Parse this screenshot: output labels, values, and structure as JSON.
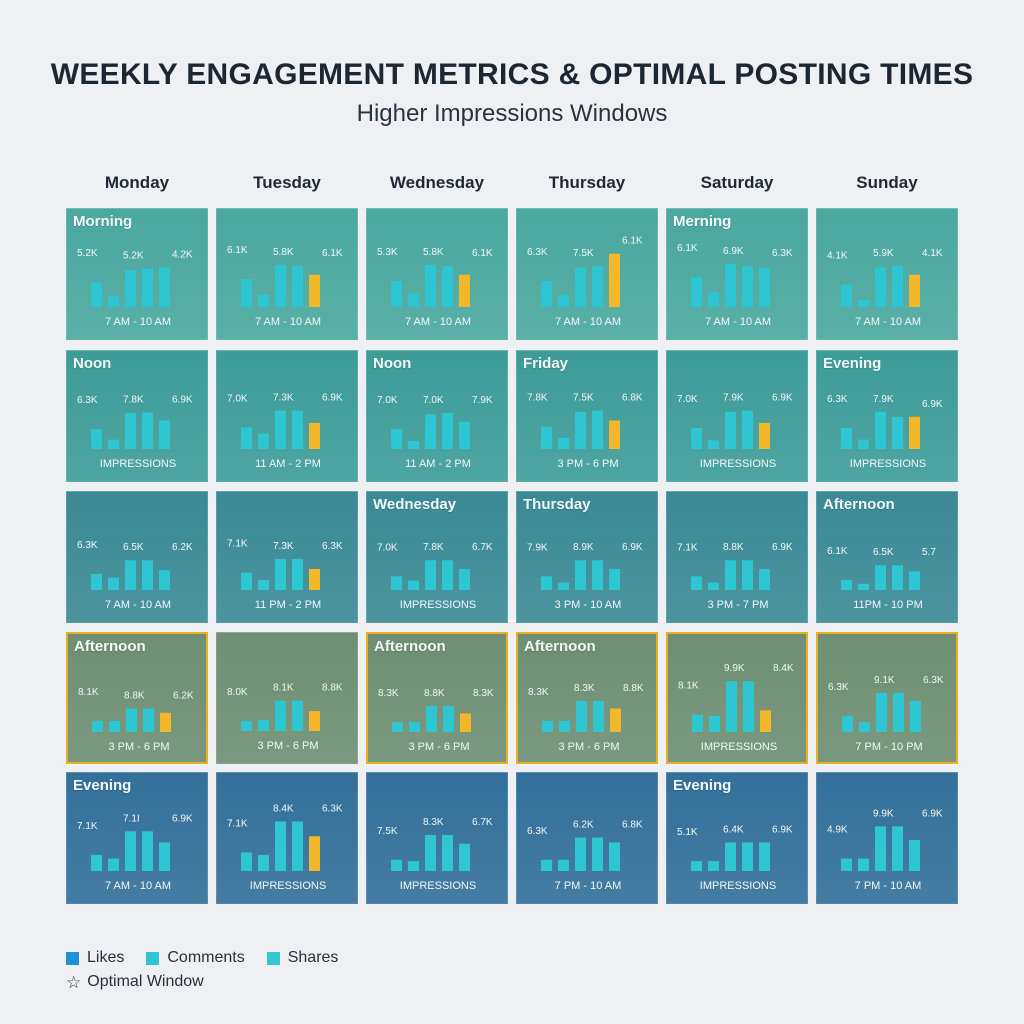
{
  "title": "WEEKLY ENGAGEMENT METRICS & OPTIMAL POSTING TIMES",
  "subtitle": "Higher Impressions Windows",
  "days": [
    "Monday",
    "Tuesday",
    "Wednesday",
    "Thursday",
    "Saturday",
    "Sunday"
  ],
  "colors": {
    "likes": "#1f8fd6",
    "comments": "#2ec6d2",
    "shares": "#35c7c9",
    "optimal": "#f2b72a",
    "row_bg": [
      "#4aa89e",
      "#3d9c98",
      "#3a8a96",
      "#6e8f73",
      "#33709a"
    ]
  },
  "legend": {
    "likes": "Likes",
    "comments": "Comments",
    "shares": "Shares",
    "optimal": "Optimal Window"
  },
  "chart_data": {
    "type": "bar",
    "title": "WEEKLY ENGAGEMENT METRICS & OPTIMAL POSTING TIMES",
    "subtitle": "Higher Impressions Windows",
    "columns": [
      "Monday",
      "Tuesday",
      "Wednesday",
      "Thursday",
      "Saturday",
      "Sunday"
    ],
    "legend_position": "bottom-left",
    "value_scale_max": 10,
    "rows": [
      [
        {
          "label": "Morning",
          "labels": [
            "5.2K",
            "5.2K",
            "4.2K"
          ],
          "bars": [
            4.0,
            1.8,
            6.0,
            6.2,
            6.4
          ],
          "highlight": false,
          "footer": "7 AM - 10 AM",
          "optimal": false
        },
        {
          "label": "",
          "labels": [
            "6.1K",
            "5.8K",
            "6.1K"
          ],
          "bars": [
            4.5,
            2.0,
            6.8,
            6.6,
            5.2
          ],
          "highlight": true,
          "footer": "7 AM - 10 AM",
          "optimal": false
        },
        {
          "label": "",
          "labels": [
            "5.3K",
            "5.8K",
            "6.1K"
          ],
          "bars": [
            4.2,
            2.2,
            6.8,
            6.6,
            5.2
          ],
          "highlight": true,
          "footer": "7 AM - 10 AM",
          "optimal": false
        },
        {
          "label": "",
          "labels": [
            "6.3K",
            "7.5K",
            "6.1K"
          ],
          "bars": [
            4.2,
            2.0,
            6.4,
            6.6,
            8.6
          ],
          "highlight": true,
          "footer": "7 AM - 10 AM",
          "optimal": false
        },
        {
          "label": "Merning",
          "labels": [
            "6.1K",
            "6.9K",
            "6.3K"
          ],
          "bars": [
            4.8,
            2.4,
            6.9,
            6.6,
            6.3
          ],
          "highlight": false,
          "footer": "7 AM - 10 AM",
          "optimal": false
        },
        {
          "label": "",
          "labels": [
            "4.1K",
            "5.9K",
            "4.1K"
          ],
          "bars": [
            3.6,
            1.2,
            6.4,
            6.6,
            5.2
          ],
          "highlight": true,
          "footer": "7 AM - 10 AM",
          "optimal": false
        }
      ],
      [
        {
          "label": "Noon",
          "labels": [
            "6.3K",
            "7.8K",
            "6.9K"
          ],
          "bars": [
            3.2,
            1.5,
            5.8,
            5.9,
            4.6
          ],
          "highlight": false,
          "footer": "IMPRESSIONS",
          "optimal": false
        },
        {
          "label": "",
          "labels": [
            "7.0K",
            "7.3K",
            "6.9K"
          ],
          "bars": [
            3.5,
            2.5,
            6.2,
            6.2,
            4.2
          ],
          "highlight": true,
          "footer": "11 AM - 2 PM",
          "optimal": false
        },
        {
          "label": "Noon",
          "labels": [
            "7.0K",
            "7.0K",
            "7.9K"
          ],
          "bars": [
            3.2,
            1.3,
            5.6,
            5.8,
            4.4
          ],
          "highlight": false,
          "footer": "11 AM - 2 PM",
          "optimal": false
        },
        {
          "label": "Friday",
          "labels": [
            "7.8K",
            "7.5K",
            "6.8K"
          ],
          "bars": [
            3.6,
            1.8,
            6.0,
            6.2,
            4.6
          ],
          "highlight": true,
          "footer": "3 PM - 6 PM",
          "optimal": false
        },
        {
          "label": "",
          "labels": [
            "7.0K",
            "7.9K",
            "6.9K"
          ],
          "bars": [
            3.4,
            1.4,
            6.0,
            6.2,
            4.2
          ],
          "highlight": true,
          "footer": "IMPRESSIONS",
          "optimal": false
        },
        {
          "label": "Evening",
          "labels": [
            "6.3K",
            "7.9K",
            "6.9K"
          ],
          "bars": [
            3.4,
            1.5,
            6.0,
            5.2,
            5.2
          ],
          "highlight": true,
          "footer": "IMPRESSIONS",
          "optimal": false
        }
      ],
      [
        {
          "label": "",
          "labels": [
            "6.3K",
            "6.5K",
            "6.2K"
          ],
          "bars": [
            2.6,
            2.0,
            4.8,
            4.8,
            3.2
          ],
          "highlight": false,
          "footer": "7 AM - 10 AM",
          "optimal": false
        },
        {
          "label": "",
          "labels": [
            "7.1K",
            "7.3K",
            "6.3K"
          ],
          "bars": [
            2.8,
            1.6,
            5.0,
            5.0,
            3.4
          ],
          "highlight": true,
          "footer": "11 PM - 2 PM",
          "optimal": false
        },
        {
          "label": "Wednesday",
          "labels": [
            "7.0K",
            "7.8K",
            "6.7K"
          ],
          "bars": [
            2.2,
            1.5,
            4.8,
            4.8,
            3.4
          ],
          "highlight": false,
          "footer": "IMPRESSIONS",
          "optimal": false
        },
        {
          "label": "Thursday",
          "labels": [
            "7.9K",
            "8.9K",
            "6.9K"
          ],
          "bars": [
            2.2,
            1.2,
            4.8,
            4.8,
            3.4
          ],
          "highlight": false,
          "footer": "3 PM - 10 AM",
          "optimal": false
        },
        {
          "label": "",
          "labels": [
            "7.1K",
            "8.8K",
            "6.9K"
          ],
          "bars": [
            2.2,
            1.2,
            4.8,
            4.8,
            3.4
          ],
          "highlight": false,
          "footer": "3 PM - 7 PM",
          "optimal": false
        },
        {
          "label": "Afternoon",
          "labels": [
            "6.1K",
            "6.5K",
            "5.7"
          ],
          "bars": [
            1.6,
            1.0,
            4.0,
            4.0,
            3.0
          ],
          "highlight": false,
          "footer": "11PM - 10 PM",
          "optimal": false
        }
      ],
      [
        {
          "label": "Afternoon",
          "labels": [
            "8.1K",
            "8.8K",
            "6.2K"
          ],
          "bars": [
            1.8,
            1.8,
            3.8,
            3.8,
            3.1
          ],
          "highlight": true,
          "footer": "3 PM - 6 PM",
          "optimal": true
        },
        {
          "label": "",
          "labels": [
            "8.0K",
            "8.1K",
            "8.8K"
          ],
          "bars": [
            1.6,
            1.8,
            4.9,
            4.9,
            3.2
          ],
          "highlight": true,
          "footer": "3 PM - 6 PM",
          "optimal": false
        },
        {
          "label": "Afternoon",
          "labels": [
            "8.3K",
            "8.8K",
            "8.3K"
          ],
          "bars": [
            1.6,
            1.6,
            4.2,
            4.2,
            3.0
          ],
          "highlight": true,
          "footer": "3 PM - 6 PM",
          "optimal": true
        },
        {
          "label": "Afternoon",
          "labels": [
            "8.3K",
            "8.3K",
            "8.8K"
          ],
          "bars": [
            1.8,
            1.8,
            5.0,
            5.0,
            3.8
          ],
          "highlight": true,
          "footer": "3 PM - 6 PM",
          "optimal": true
        },
        {
          "label": "",
          "labels": [
            "8.1K",
            "9.9K",
            "8.4K"
          ],
          "bars": [
            2.8,
            2.6,
            8.2,
            8.2,
            3.5
          ],
          "highlight": true,
          "footer": "IMPRESSIONS",
          "optimal": true
        },
        {
          "label": "",
          "labels": [
            "6.3K",
            "9.1K",
            "6.3K"
          ],
          "bars": [
            2.6,
            1.6,
            6.3,
            6.3,
            5.0
          ],
          "highlight": false,
          "footer": "7 PM - 10 PM",
          "optimal": true
        }
      ],
      [
        {
          "label": "Evening",
          "labels": [
            "7.1K",
            "7.1I",
            "6.9K"
          ],
          "bars": [
            2.6,
            2.0,
            6.4,
            6.4,
            4.6
          ],
          "highlight": false,
          "footer": "7 AM - 10 AM",
          "optimal": false
        },
        {
          "label": "",
          "labels": [
            "7.1K",
            "8.4K",
            "6.3K"
          ],
          "bars": [
            3.0,
            2.6,
            8.0,
            8.0,
            5.6
          ],
          "highlight": true,
          "footer": "IMPRESSIONS",
          "optimal": false
        },
        {
          "label": "",
          "labels": [
            "7.5K",
            "8.3K",
            "6.7K"
          ],
          "bars": [
            1.8,
            1.6,
            5.8,
            5.8,
            4.4
          ],
          "highlight": false,
          "footer": "IMPRESSIONS",
          "optimal": false
        },
        {
          "label": "",
          "labels": [
            "6.3K",
            "6.2K",
            "6.8K"
          ],
          "bars": [
            1.8,
            1.8,
            5.4,
            5.4,
            4.6
          ],
          "highlight": false,
          "footer": "7 PM - 10 AM",
          "optimal": false
        },
        {
          "label": "Evening",
          "labels": [
            "5.1K",
            "6.4K",
            "6.9K"
          ],
          "bars": [
            1.6,
            1.6,
            4.6,
            4.6,
            4.6
          ],
          "highlight": false,
          "footer": "IMPRESSIONS",
          "optimal": false
        },
        {
          "label": "",
          "labels": [
            "4.9K",
            "9.9K",
            "6.9K"
          ],
          "bars": [
            2.0,
            2.0,
            7.2,
            7.2,
            5.0
          ],
          "highlight": false,
          "footer": "7 PM - 10 AM",
          "optimal": false
        }
      ]
    ]
  }
}
